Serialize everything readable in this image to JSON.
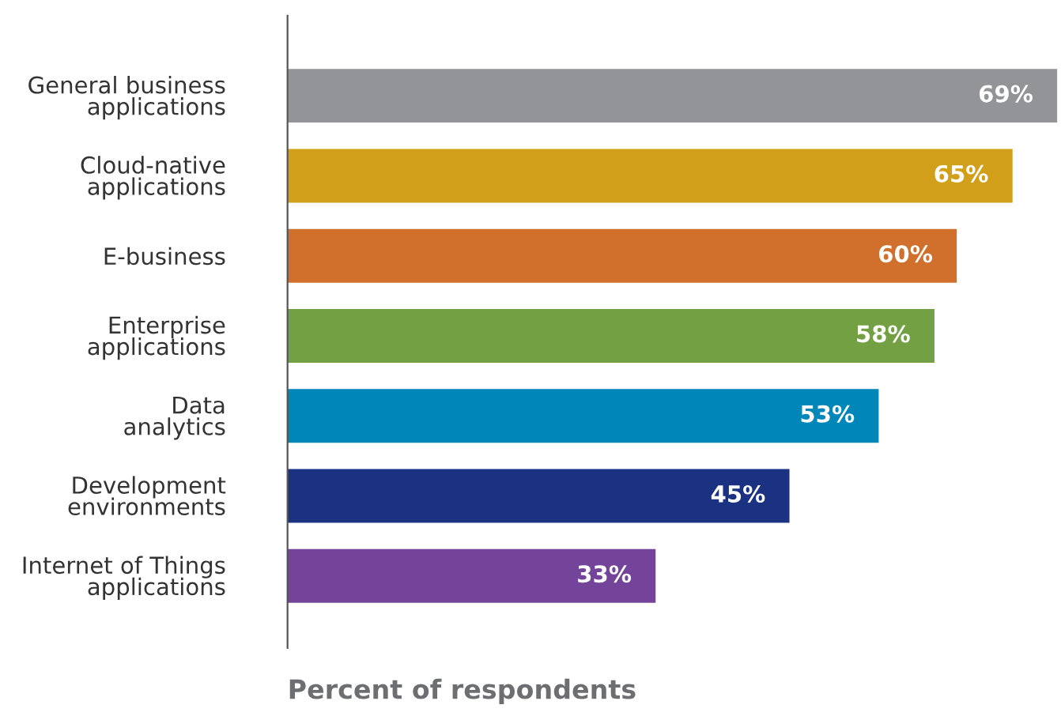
{
  "chart_data": {
    "type": "bar",
    "orientation": "horizontal",
    "xlabel": "Percent of respondents",
    "categories": [
      "General business\napplications",
      "Cloud-native\napplications",
      "E-business",
      "Enterprise\napplications",
      "Data\nanalytics",
      "Development\nenvironments",
      "Internet of Things\napplications"
    ],
    "values": [
      69,
      65,
      60,
      58,
      53,
      45,
      33
    ],
    "colors": [
      "#929497",
      "#d29f1a",
      "#d0702c",
      "#72a042",
      "#0086b8",
      "#1a3281",
      "#74449a"
    ],
    "value_labels": [
      "69%",
      "65%",
      "60%",
      "58%",
      "53%",
      "45%",
      "33%"
    ],
    "grid": false,
    "legend": false
  }
}
